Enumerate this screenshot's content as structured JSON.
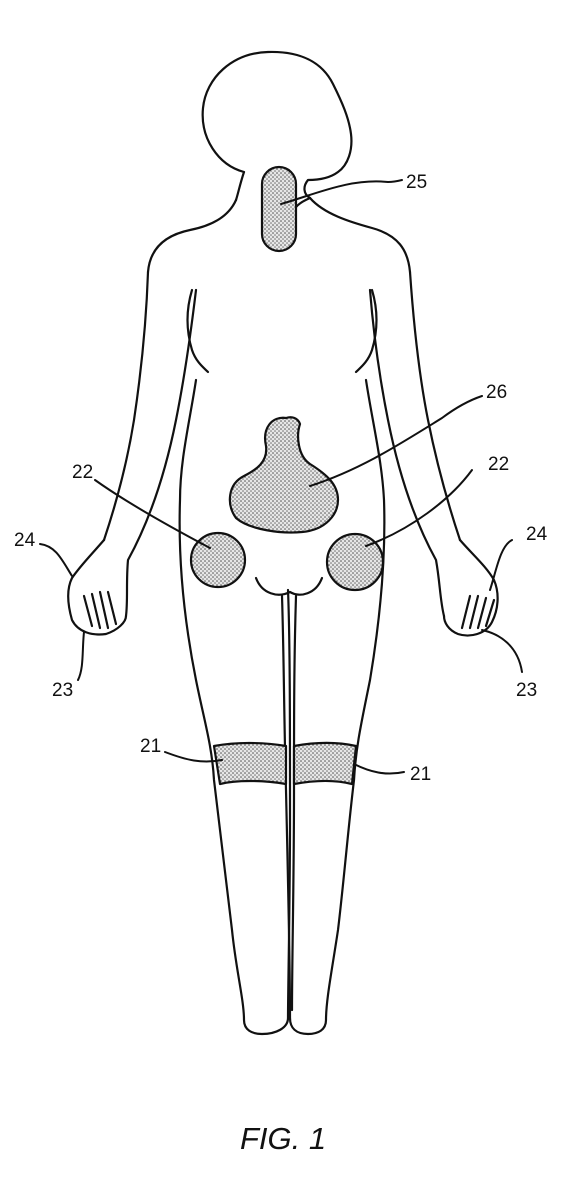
{
  "figure": {
    "caption": "FIG. 1",
    "labels": {
      "neck": "25",
      "lower_back": "26",
      "hip_left": "22",
      "hip_right": "22",
      "hand_left_upper": "24",
      "hand_right_upper": "24",
      "hand_left_lower": "23",
      "hand_right_lower": "23",
      "knee_left": "21",
      "knee_right": "21"
    }
  }
}
